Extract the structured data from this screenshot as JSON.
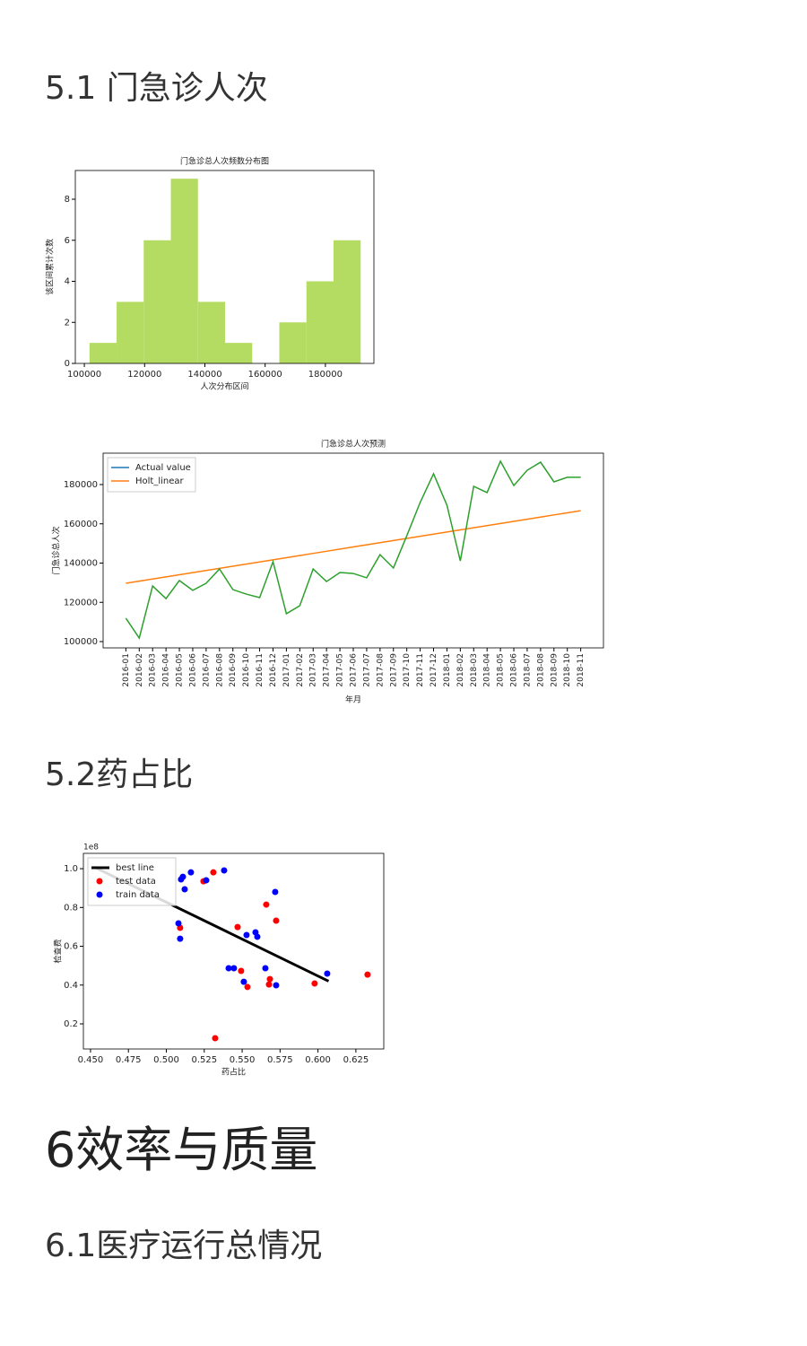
{
  "headings": [
    "5.1 门急诊人次",
    "5.2药占比",
    "6效率与质量",
    "6.1医疗运行总情况"
  ],
  "chart_data": [
    {
      "type": "histogram",
      "title": "门急诊总人次频数分布图",
      "x_label": "人次分布区间",
      "y_label": "该区间累计次数",
      "bins": [
        101700,
        110700,
        119700,
        128700,
        137700,
        146700,
        155700,
        164700,
        173700,
        182700,
        191700
      ],
      "values": [
        1,
        3,
        6,
        9,
        3,
        1,
        0,
        2,
        4,
        6
      ],
      "color": "#b5dc62",
      "xlim": [
        97000,
        196100
      ],
      "xticks": [
        100000,
        120000,
        140000,
        160000,
        180000
      ],
      "ylim": [
        0,
        9.4
      ],
      "yticks": [
        0,
        2,
        4,
        6,
        8
      ]
    },
    {
      "type": "line",
      "title": "门急诊总人次预测",
      "x_label": "年月",
      "y_label": "门急诊总人次",
      "legend": "upper left",
      "categories": [
        "2016-01",
        "2016-02",
        "2016-03",
        "2016-04",
        "2016-05",
        "2016-06",
        "2016-07",
        "2016-08",
        "2016-09",
        "2016-10",
        "2016-11",
        "2016-12",
        "2017-01",
        "2017-02",
        "2017-03",
        "2017-04",
        "2017-05",
        "2017-06",
        "2017-07",
        "2017-08",
        "2017-09",
        "2017-10",
        "2017-11",
        "2017-12",
        "2018-01",
        "2018-02",
        "2018-03",
        "2018-04",
        "2018-05",
        "2018-06",
        "2018-07",
        "2018-08",
        "2018-09",
        "2018-10",
        "2018-11"
      ],
      "series": [
        {
          "name": "Actual value",
          "color": "#1f77b4",
          "values": [
            null,
            null,
            null,
            null,
            null,
            null,
            null,
            null,
            null,
            null,
            null,
            null,
            null,
            null,
            null,
            null,
            null,
            null,
            null,
            null,
            null,
            null,
            null,
            null,
            null,
            null,
            null,
            null,
            null,
            null,
            null,
            null,
            null,
            null,
            null
          ]
        },
        {
          "name": "Holt_linear",
          "color": "#ff7f0e",
          "values": [
            129700,
            130790,
            131880,
            132970,
            134050,
            135140,
            136230,
            137320,
            138410,
            139500,
            140590,
            141680,
            142760,
            143850,
            144940,
            146030,
            147120,
            148210,
            149300,
            150380,
            151470,
            152560,
            153650,
            154740,
            155830,
            156920,
            158010,
            159090,
            160180,
            161270,
            162360,
            163450,
            164540,
            165620,
            166700
          ]
        },
        {
          "name": null,
          "color": "#2ca02c",
          "values": [
            111900,
            101800,
            128300,
            121900,
            131100,
            126100,
            129700,
            137000,
            126500,
            124200,
            122400,
            140700,
            114200,
            118300,
            137000,
            130600,
            135200,
            134700,
            132500,
            144300,
            137500,
            153900,
            170900,
            185500,
            169500,
            141100,
            179100,
            175900,
            191900,
            179500,
            187300,
            191400,
            181400,
            183700,
            183700
          ]
        }
      ],
      "ylim": [
        96800,
        196000
      ],
      "yticks": [
        100000,
        120000,
        140000,
        160000,
        180000
      ]
    },
    {
      "type": "scatter",
      "x_label": "药占比",
      "y_label": "检查费",
      "offset_label": "1e8",
      "legend": "upper left",
      "series": [
        {
          "name": "best line",
          "color": "#000000",
          "style": "line",
          "x": [
            0.452,
            0.607
          ],
          "values": [
            1.01,
            0.42
          ]
        },
        {
          "name": "test data",
          "color": "#ff0000",
          "x": [
            0.531,
            0.5245,
            0.5659,
            0.5724,
            0.547,
            0.5091,
            0.5493,
            0.5683,
            0.5535,
            0.5677,
            0.5978,
            0.6327,
            0.5322
          ],
          "values": [
            0.981,
            0.935,
            0.815,
            0.732,
            0.699,
            0.695,
            0.473,
            0.431,
            0.39,
            0.403,
            0.408,
            0.454,
            0.126
          ]
        },
        {
          "name": "train data",
          "color": "#0000ff",
          "x": [
            0.5381,
            0.5162,
            0.5109,
            0.5097,
            0.5263,
            0.5121,
            0.5718,
            0.508,
            0.5091,
            0.5588,
            0.56,
            0.5529,
            0.5411,
            0.5446,
            0.5653,
            0.5511,
            0.5724,
            0.6061
          ],
          "values": [
            0.991,
            0.981,
            0.958,
            0.945,
            0.94,
            0.894,
            0.88,
            0.718,
            0.639,
            0.672,
            0.649,
            0.658,
            0.487,
            0.487,
            0.487,
            0.417,
            0.399,
            0.459
          ]
        }
      ],
      "xlim": [
        0.4453,
        0.6434
      ],
      "xticks": [
        {
          "value": 0.45,
          "label": "0.450"
        },
        0.475,
        {
          "value": 0.5,
          "label": "0.500"
        },
        0.525,
        {
          "value": 0.55,
          "label": "0.550"
        },
        0.575,
        {
          "value": 0.6,
          "label": "0.600"
        },
        0.625
      ],
      "ylim": [
        0.0705,
        1.079
      ],
      "yticks": [
        0.2,
        0.4,
        0.6,
        0.8,
        {
          "value": 1,
          "label": "1.0"
        }
      ]
    }
  ]
}
